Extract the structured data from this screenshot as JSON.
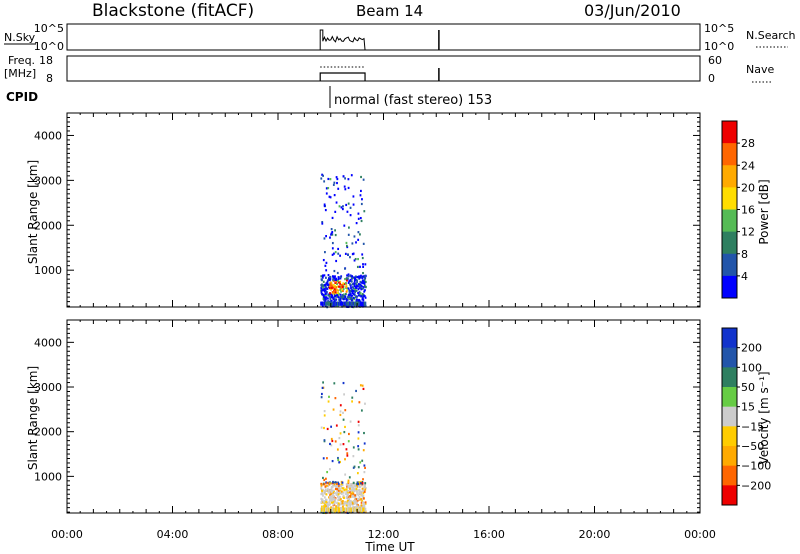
{
  "header": {
    "station": "Blackstone (fitACF)",
    "beam": "Beam 14",
    "date": "03/Jun/2010"
  },
  "top_panels": {
    "nsky": {
      "label": "N.Sky",
      "ticks": [
        "10^5",
        "10^0"
      ],
      "right_ticks": [
        "10^5",
        "10^0"
      ],
      "right_label": "N.Search"
    },
    "freq": {
      "label_line1": "Freq.",
      "label_line2": "[MHz]",
      "ticks": [
        "18",
        "8"
      ],
      "right_ticks": [
        "60",
        "0"
      ],
      "right_label": "Nave"
    },
    "cpid": {
      "label": "CPID",
      "text": "normal (fast stereo) 153"
    }
  },
  "chart_data": [
    {
      "type": "heatmap",
      "name": "power",
      "ylabel": "Slant Range [km]",
      "y_ticks": [
        "1000",
        "2000",
        "3000",
        "4000"
      ],
      "ylim": [
        180,
        4500
      ],
      "xlim": [
        0,
        24
      ],
      "colorbar": {
        "label": "Power [dB]",
        "ticks": [
          "4",
          "8",
          "12",
          "16",
          "20",
          "24",
          "28"
        ],
        "colors": [
          "#0000ff",
          "#2255aa",
          "#2e7f60",
          "#55bb55",
          "#ffdd00",
          "#ffaa00",
          "#ff6600",
          "#ee0000"
        ]
      },
      "data_time_range_hours": [
        9.6,
        11.3
      ]
    },
    {
      "type": "heatmap",
      "name": "velocity",
      "ylabel": "Slant Range [km]",
      "y_ticks": [
        "1000",
        "2000",
        "3000",
        "4000"
      ],
      "ylim": [
        180,
        4500
      ],
      "xlim": [
        0,
        24
      ],
      "colorbar": {
        "label": "Velocity [m s⁻¹]",
        "ticks": [
          "200",
          "100",
          "50",
          "15",
          "−15",
          "−50",
          "−100",
          "−200"
        ],
        "colors": [
          "#1133cc",
          "#2255aa",
          "#2e7f60",
          "#66cc44",
          "#cccccc",
          "#ffcc00",
          "#ffaa00",
          "#ff6600",
          "#ee0000"
        ]
      },
      "data_time_range_hours": [
        9.6,
        11.3
      ]
    }
  ],
  "xaxis": {
    "label": "Time UT",
    "ticks": [
      "00:00",
      "04:00",
      "08:00",
      "12:00",
      "16:00",
      "20:00",
      "00:00"
    ]
  }
}
